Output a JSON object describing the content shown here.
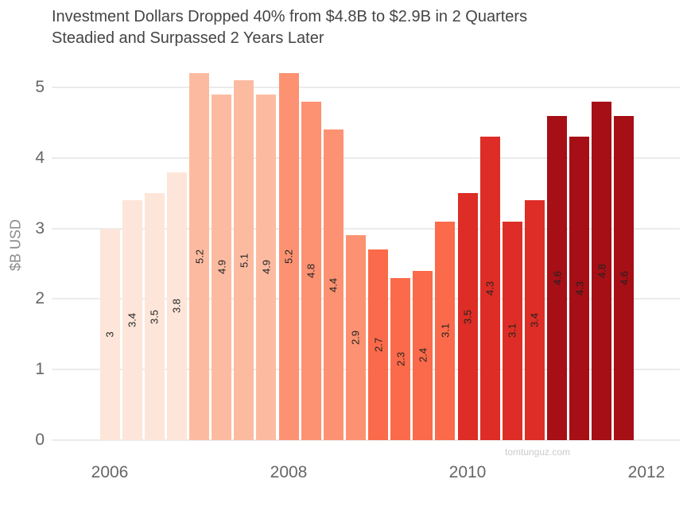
{
  "chart": {
    "title_line1": "Investment Dollars Dropped 40% from $4.8B to $2.9B in 2 Quarters",
    "title_line2": "Steadied and Surpassed 2 Years Later",
    "ylabel": "$B USD",
    "watermark": "tomtunguz.com"
  },
  "chart_data": {
    "type": "bar",
    "title": "Investment Dollars Dropped 40% from $4.8B to $2.9B in 2 Quarters Steadied and Surpassed 2 Years Later",
    "xlabel": "",
    "ylabel": "$B USD",
    "ylim": [
      0,
      5.3
    ],
    "yticks": [
      0,
      1,
      2,
      3,
      4,
      5
    ],
    "xtick_years": [
      2006,
      2008,
      2010,
      2012
    ],
    "grid": "horizontal",
    "legend": "none",
    "bar_value_labels_rotated_90": true,
    "categories": [
      "2006 Q1",
      "2006 Q2",
      "2006 Q3",
      "2006 Q4",
      "2007 Q1",
      "2007 Q2",
      "2007 Q3",
      "2007 Q4",
      "2008 Q1",
      "2008 Q2",
      "2008 Q3",
      "2008 Q4",
      "2009 Q1",
      "2009 Q2",
      "2009 Q3",
      "2009 Q4",
      "2010 Q1",
      "2010 Q2",
      "2010 Q3",
      "2010 Q4",
      "2011 Q1",
      "2011 Q2",
      "2011 Q3",
      "2011 Q4"
    ],
    "values": [
      3,
      3.4,
      3.5,
      3.8,
      5.2,
      4.9,
      5.1,
      4.9,
      5.2,
      4.8,
      4.4,
      2.9,
      2.7,
      2.3,
      2.4,
      3.1,
      3.5,
      4.3,
      3.1,
      3.4,
      4.6,
      4.3,
      4.8,
      4.6
    ],
    "value_labels": [
      "3",
      "3.4",
      "3.5",
      "3.8",
      "5.2",
      "4.9",
      "5.1",
      "4.9",
      "5.2",
      "4.8",
      "4.4",
      "2.9",
      "2.7",
      "2.3",
      "2.4",
      "3.1",
      "3.5",
      "4.3",
      "3.1",
      "3.4",
      "4.6",
      "4.3",
      "4.8",
      "4.6"
    ],
    "year_colors": {
      "2006": "#fee5d9",
      "2007": "#fcbba1",
      "2008": "#fc9272",
      "2009": "#fb6a4a",
      "2010": "#de2d26",
      "2011": "#a50f15"
    },
    "colors": {
      "title_text": "#444444",
      "axis_text": "#666666",
      "axis_title_text": "#8a8a8a",
      "bar_label_text": "#222222",
      "gridline": "#ebebeb",
      "watermark_text": "#cbcbcb",
      "background": "#ffffff"
    }
  }
}
